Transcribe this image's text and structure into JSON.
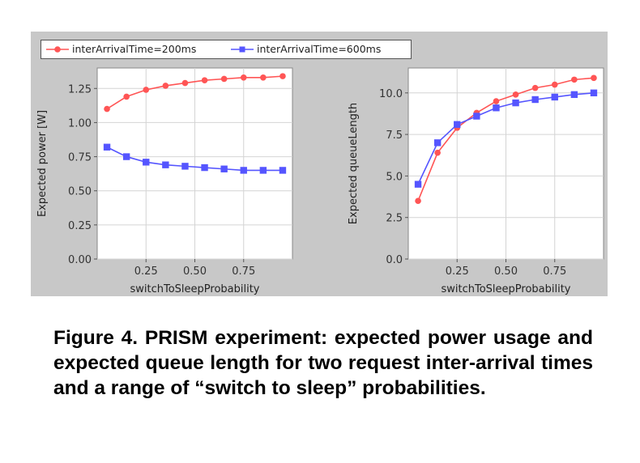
{
  "legend": [
    {
      "label": "interArrivalTime=200ms",
      "color": "#ff5555",
      "marker": "circle"
    },
    {
      "label": "interArrivalTime=600ms",
      "color": "#5555ff",
      "marker": "square"
    }
  ],
  "chart_data": [
    {
      "type": "line",
      "title": "",
      "xlabel": "switchToSleepProbability",
      "ylabel": "Expected power [W]",
      "xlim": [
        0,
        1
      ],
      "ylim": [
        0,
        1.4
      ],
      "xticks": [
        0.25,
        0.5,
        0.75
      ],
      "xtick_labels": [
        "0.25",
        "0.50",
        "0.75"
      ],
      "yticks": [
        0,
        0.25,
        0.5,
        0.75,
        1.0,
        1.25
      ],
      "ytick_labels": [
        "0.00",
        "0.25",
        "0.50",
        "0.75",
        "1.00",
        "1.25"
      ],
      "grid": true,
      "x": [
        0.05,
        0.15,
        0.25,
        0.35,
        0.45,
        0.55,
        0.65,
        0.75,
        0.85,
        0.95
      ],
      "series": [
        {
          "name": "interArrivalTime=200ms",
          "values": [
            1.1,
            1.19,
            1.24,
            1.27,
            1.29,
            1.31,
            1.32,
            1.33,
            1.33,
            1.34
          ]
        },
        {
          "name": "interArrivalTime=600ms",
          "values": [
            0.82,
            0.75,
            0.71,
            0.69,
            0.68,
            0.67,
            0.66,
            0.65,
            0.65,
            0.65
          ]
        }
      ]
    },
    {
      "type": "line",
      "title": "",
      "xlabel": "switchToSleepProbability",
      "ylabel": "Expected queueLength",
      "xlim": [
        0,
        1
      ],
      "ylim": [
        0,
        11.5
      ],
      "xticks": [
        0.25,
        0.5,
        0.75
      ],
      "xtick_labels": [
        "0.25",
        "0.50",
        "0.75"
      ],
      "yticks": [
        0,
        2.5,
        5.0,
        7.5,
        10.0
      ],
      "ytick_labels": [
        "0.0",
        "2.5",
        "5.0",
        "7.5",
        "10.0"
      ],
      "grid": true,
      "x": [
        0.05,
        0.15,
        0.25,
        0.35,
        0.45,
        0.55,
        0.65,
        0.75,
        0.85,
        0.95
      ],
      "series": [
        {
          "name": "interArrivalTime=200ms",
          "values": [
            3.5,
            6.4,
            7.9,
            8.8,
            9.5,
            9.9,
            10.3,
            10.5,
            10.8,
            10.9
          ]
        },
        {
          "name": "interArrivalTime=600ms",
          "values": [
            4.5,
            7.0,
            8.1,
            8.6,
            9.1,
            9.4,
            9.6,
            9.75,
            9.9,
            10.0
          ]
        }
      ]
    }
  ],
  "caption": "Figure 4. PRISM experiment: expected power usage and expected queue length for two request inter-arrival times and a range of “switch to sleep” probabilities."
}
